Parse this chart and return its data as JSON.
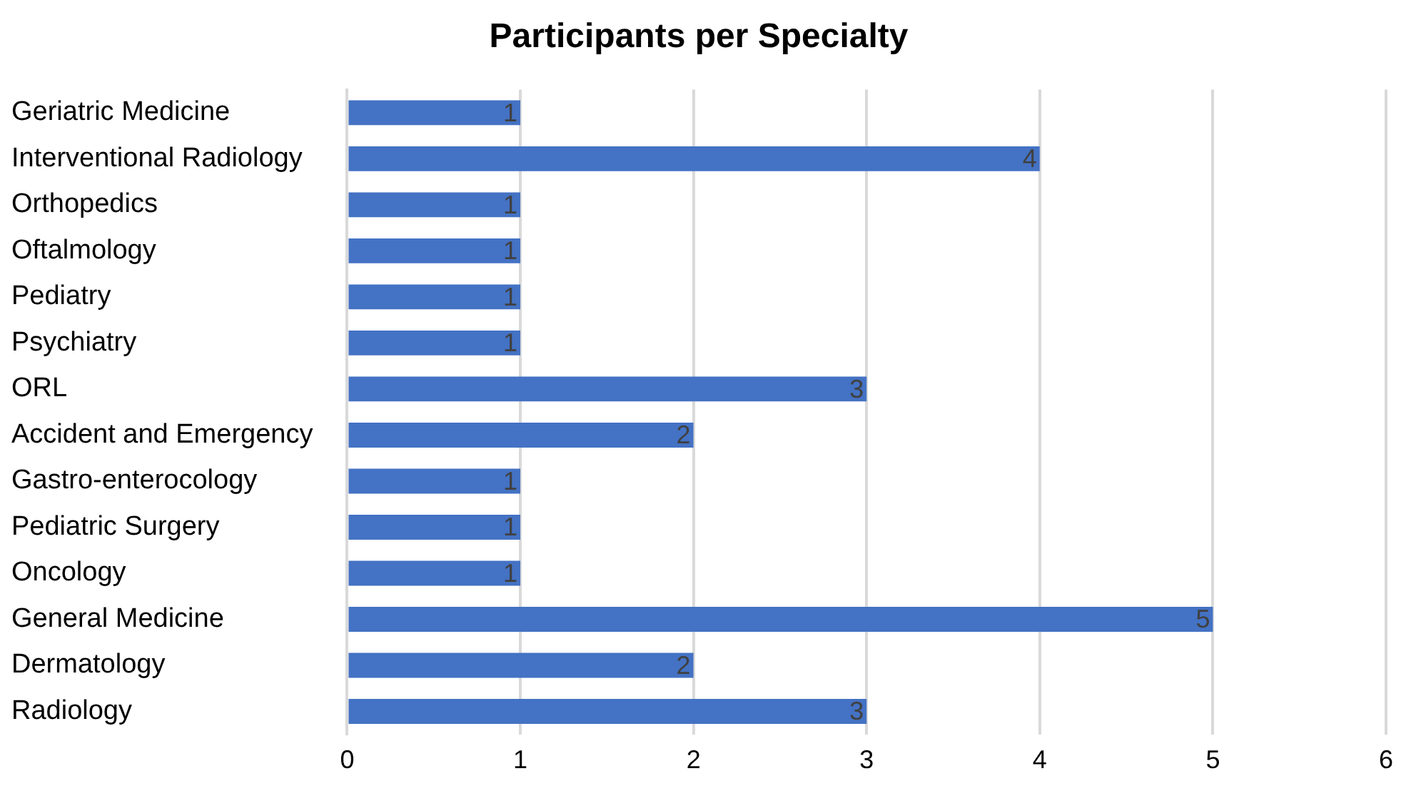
{
  "chart_data": {
    "type": "bar",
    "orientation": "horizontal",
    "title": "Participants per Specialty",
    "categories": [
      "Geriatric Medicine",
      "Interventional Radiology",
      "Orthopedics",
      "Oftalmology",
      "Pediatry",
      "Psychiatry",
      "ORL",
      "Accident and Emergency",
      "Gastro-enterocology",
      "Pediatric Surgery",
      "Oncology",
      "General Medicine",
      "Dermatology",
      "Radiology"
    ],
    "values": [
      1,
      4,
      1,
      1,
      1,
      1,
      3,
      2,
      1,
      1,
      1,
      5,
      2,
      3
    ],
    "color": "#4472c4",
    "xlim": [
      0,
      6
    ],
    "xticks": [
      0,
      1,
      2,
      3,
      4,
      5,
      6
    ],
    "grid": "x",
    "data_labels": true,
    "legend": false
  }
}
